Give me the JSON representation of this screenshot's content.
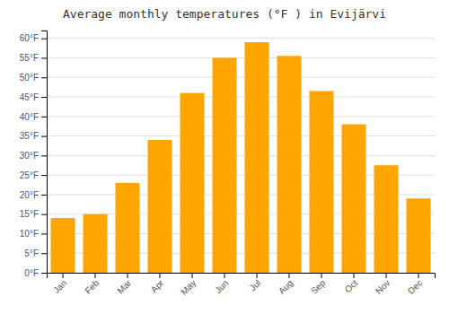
{
  "chart_data": {
    "type": "bar",
    "title": "Average monthly temperatures (°F ) in Evijärvi",
    "categories": [
      "Jan",
      "Feb",
      "Mar",
      "Apr",
      "May",
      "Jun",
      "Jul",
      "Aug",
      "Sep",
      "Oct",
      "Nov",
      "Dec"
    ],
    "values": [
      14,
      15,
      23,
      34,
      46,
      55,
      59,
      55.5,
      46.5,
      38,
      27.5,
      19
    ],
    "color": "#FFA500",
    "ylim": [
      0,
      62
    ],
    "yticks": [
      {
        "value": 0,
        "label": "0°F"
      },
      {
        "value": 5,
        "label": "5°F"
      },
      {
        "value": 10,
        "label": "10°F"
      },
      {
        "value": 15,
        "label": "15°F"
      },
      {
        "value": 20,
        "label": "20°F"
      },
      {
        "value": 25,
        "label": "25°F"
      },
      {
        "value": 30,
        "label": "30°F"
      },
      {
        "value": 35,
        "label": "35°F"
      },
      {
        "value": 40,
        "label": "40°F"
      },
      {
        "value": 45,
        "label": "45°F"
      },
      {
        "value": 50,
        "label": "50°F"
      },
      {
        "value": 55,
        "label": "55°F"
      },
      {
        "value": 60,
        "label": "60°F"
      }
    ],
    "grid": true
  }
}
